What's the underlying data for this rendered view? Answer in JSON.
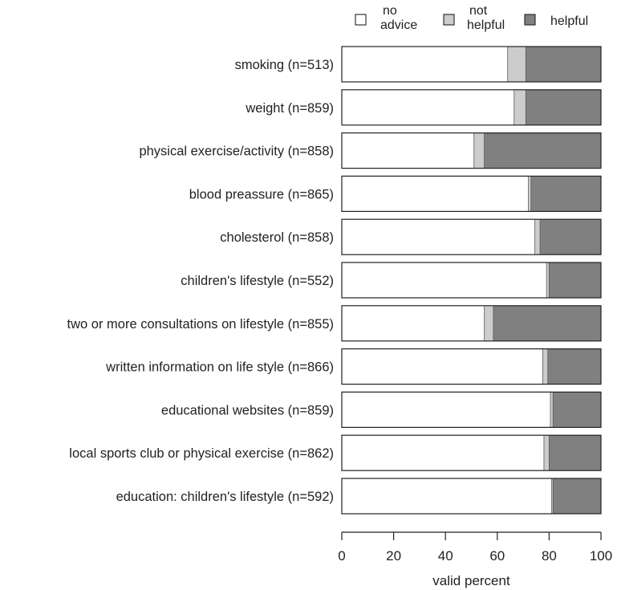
{
  "chart_data": {
    "type": "bar",
    "orientation": "horizontal",
    "stacked": true,
    "title": "",
    "xlabel": "valid percent",
    "ylabel": "",
    "xlim": [
      0,
      100
    ],
    "xticks": [
      "0",
      "20",
      "40",
      "60",
      "80",
      "100"
    ],
    "grid": false,
    "legend_position": "top",
    "categories": [
      "smoking (n=513)",
      "weight (n=859)",
      "physical exercise/activity (n=858)",
      "blood preassure (n=865)",
      "cholesterol (n=858)",
      "children's lifestyle (n=552)",
      "two or more consultations on lifestyle (n=855)",
      "written information on life style (n=866)",
      "educational websites (n=859)",
      "local sports club or physical exercise (n=862)",
      "education: children's lifestyle (n=592)"
    ],
    "series": [
      {
        "name": "no advice",
        "legend_lines": [
          "no",
          "advice"
        ],
        "color": "#ffffff",
        "values": [
          64,
          66.5,
          51,
          72,
          74.5,
          79,
          55,
          77.5,
          80.5,
          78,
          81
        ]
      },
      {
        "name": "not helpful",
        "legend_lines": [
          "not",
          "helpful"
        ],
        "color": "#cccccc",
        "values": [
          7,
          4.5,
          4,
          1,
          2,
          1,
          3.5,
          2,
          1,
          2,
          0.5
        ]
      },
      {
        "name": "helpful",
        "legend_lines": [
          "helpful"
        ],
        "color": "#808080",
        "values": [
          29,
          29,
          45,
          27,
          23.5,
          20,
          41.5,
          20.5,
          18.5,
          20,
          18.5
        ]
      }
    ]
  }
}
